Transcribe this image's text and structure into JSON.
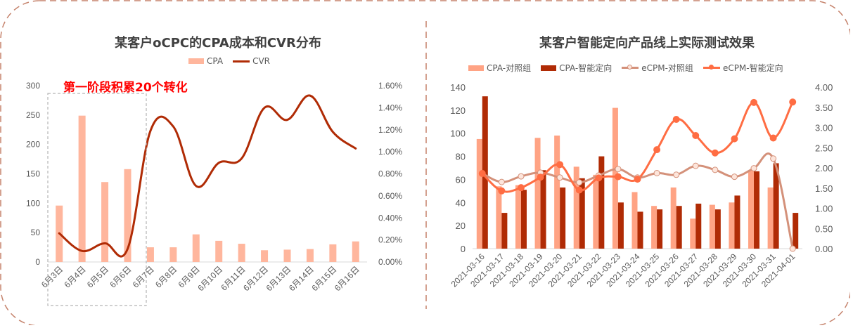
{
  "colors": {
    "frame_border": "#c5826b",
    "divider": "#c5826b",
    "left_cpa_bar": "#ffb69d",
    "left_cvr_line": "#b02b05",
    "right_cpa_control": "#ffa384",
    "right_cpa_smart": "#b02b05",
    "right_ecpm_control": "#d4917a",
    "right_ecpm_smart": "#ff6d43",
    "axis_text": "#595959",
    "annotation": "#ff0000"
  },
  "left": {
    "title": "某客户oCPC的CPA成本和CVR分布",
    "legend": [
      {
        "label": "CPA",
        "kind": "bar"
      },
      {
        "label": "CVR",
        "kind": "line"
      }
    ],
    "annotation": "第一阶段积累20个转化"
  },
  "right": {
    "title": "某客户智能定向产品线上实际测试效果",
    "legend": [
      {
        "label": "CPA-对照组",
        "kind": "bar"
      },
      {
        "label": "CPA-智能定向",
        "kind": "bar"
      },
      {
        "label": "eCPM-对照组",
        "kind": "line-hollow"
      },
      {
        "label": "eCPM-智能定向",
        "kind": "line-solid"
      }
    ]
  },
  "chart_data": [
    {
      "type": "bar",
      "title": "某客户oCPC的CPA成本和CVR分布",
      "categories": [
        "6月3日",
        "6月4日",
        "6月5日",
        "6月6日",
        "6月7日",
        "6月8日",
        "6月9日",
        "6月10日",
        "6月11日",
        "6月12日",
        "6月13日",
        "6月14日",
        "6月15日",
        "6月16日"
      ],
      "series": [
        {
          "name": "CPA",
          "type": "bar",
          "axis": "left",
          "values": [
            96,
            249,
            136,
            158,
            25,
            25,
            47,
            36,
            31,
            20,
            21,
            22,
            30,
            35
          ]
        },
        {
          "name": "CVR",
          "type": "line",
          "axis": "right",
          "unit": "%",
          "values": [
            0.26,
            0.1,
            0.17,
            0.12,
            1.19,
            1.23,
            0.69,
            0.9,
            0.94,
            1.4,
            1.29,
            1.51,
            1.18,
            1.03
          ]
        }
      ],
      "y_left": {
        "min": 0,
        "max": 300,
        "ticks": [
          "0",
          "50",
          "100",
          "150",
          "200",
          "250",
          "300"
        ]
      },
      "y_right": {
        "min": 0,
        "max": 1.6,
        "ticks": [
          "0.00%",
          "0.20%",
          "0.40%",
          "0.60%",
          "0.80%",
          "1.00%",
          "1.20%",
          "1.40%",
          "1.60%"
        ]
      },
      "xlabel": "",
      "ylabel": "",
      "grid": false,
      "legend_position": "top",
      "annotations": [
        {
          "text": "第一阶段积累20个转化",
          "covers": [
            "6月3日",
            "6月4日",
            "6月5日",
            "6月6日"
          ]
        }
      ]
    },
    {
      "type": "bar",
      "title": "某客户智能定向产品线上实际测试效果",
      "categories": [
        "2021-03-16",
        "2021-03-17",
        "2021-03-18",
        "2021-03-19",
        "2021-03-20",
        "2021-03-21",
        "2021-03-22",
        "2021-03-23",
        "2021-03-24",
        "2021-03-25",
        "2021-03-26",
        "2021-03-27",
        "2021-03-28",
        "2021-03-29",
        "2021-03-30",
        "2021-03-31",
        "2021-04-01"
      ],
      "series": [
        {
          "name": "CPA-对照组",
          "type": "bar",
          "axis": "left",
          "values": [
            95,
            54,
            55,
            96,
            98,
            71,
            64,
            122,
            49,
            37,
            53,
            26,
            38,
            40,
            68,
            53,
            0
          ]
        },
        {
          "name": "CPA-智能定向",
          "type": "bar",
          "axis": "left",
          "values": [
            132,
            31,
            51,
            68,
            53,
            61,
            80,
            40,
            32,
            34,
            37,
            39,
            34,
            46,
            67,
            74,
            31
          ]
        },
        {
          "name": "eCPM-对照组",
          "type": "line",
          "axis": "right",
          "values": [
            1.86,
            1.65,
            1.79,
            1.88,
            1.76,
            1.64,
            1.81,
            1.97,
            1.76,
            1.87,
            1.83,
            2.05,
            1.95,
            1.78,
            1.99,
            2.23,
            0.0
          ]
        },
        {
          "name": "eCPM-智能定向",
          "type": "line",
          "axis": "right",
          "values": [
            1.86,
            1.43,
            1.51,
            1.77,
            2.08,
            1.45,
            1.75,
            1.78,
            1.72,
            2.45,
            3.2,
            2.8,
            2.37,
            2.72,
            3.62,
            2.74,
            3.63
          ]
        }
      ],
      "y_left": {
        "min": 0,
        "max": 140,
        "ticks": [
          "0",
          "20",
          "40",
          "60",
          "80",
          "100",
          "120",
          "140"
        ]
      },
      "y_right": {
        "min": 0,
        "max": 4,
        "ticks": [
          "0.00",
          "0.50",
          "1.00",
          "1.50",
          "2.00",
          "2.50",
          "3.00",
          "3.50",
          "4.00"
        ]
      },
      "xlabel": "",
      "ylabel": "",
      "grid": false,
      "legend_position": "top"
    }
  ]
}
